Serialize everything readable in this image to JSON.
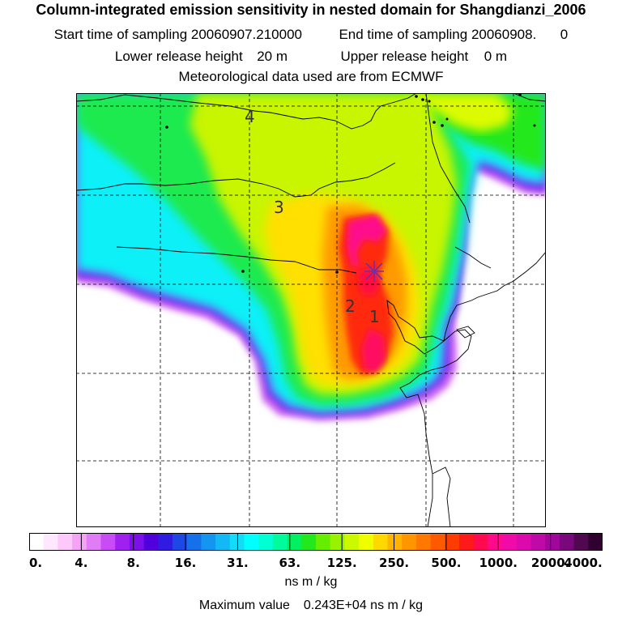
{
  "header": {
    "title": "Column-integrated emission sensitivity in nested domain for Shangdianzi_2006",
    "start_label": "Start time of sampling",
    "start_value": "20060907.210000",
    "end_label": "End time of sampling",
    "end_value": "20060908.",
    "end_suffix": "0",
    "lower_label": "Lower release height",
    "lower_value": "20 m",
    "upper_label": "Upper release height",
    "upper_value": "0 m",
    "met": "Meteorological data used are from ECMWF"
  },
  "map": {
    "labels": [
      "1",
      "2",
      "3",
      "4"
    ],
    "receptor_symbol": "receptor-star"
  },
  "colorbar": {
    "tick_labels": [
      "0.",
      "4.",
      "8.",
      "16.",
      "31.",
      "63.",
      "125.",
      "250.",
      "500.",
      "1000.",
      "2000.",
      "4000."
    ],
    "units": "ns m / kg",
    "colors": [
      "#ffffff",
      "#ffe8ff",
      "#ffc8fa",
      "#f5a3f7",
      "#e07cf5",
      "#c84bf5",
      "#a020f0",
      "#7b10e8",
      "#5000dc",
      "#2f1ce0",
      "#1d48e6",
      "#1670ea",
      "#1496f0",
      "#14b8f5",
      "#14dcf8",
      "#00ffff",
      "#00ffd2",
      "#00fa9c",
      "#00f060",
      "#22e81e",
      "#66ee00",
      "#99f200",
      "#ccf800",
      "#f0ff00",
      "#ffd800",
      "#ffb400",
      "#ff9600",
      "#ff7800",
      "#ff5a00",
      "#ff3c00",
      "#ff1a1a",
      "#ff0a50",
      "#ff0a8a",
      "#f00aa8",
      "#dc0aac",
      "#c00aa8",
      "#a0089c",
      "#78087c",
      "#500850",
      "#300030"
    ]
  },
  "footer": {
    "max_label": "Maximum value",
    "max_value": "0.243E+04",
    "max_units": "ns m / kg"
  }
}
